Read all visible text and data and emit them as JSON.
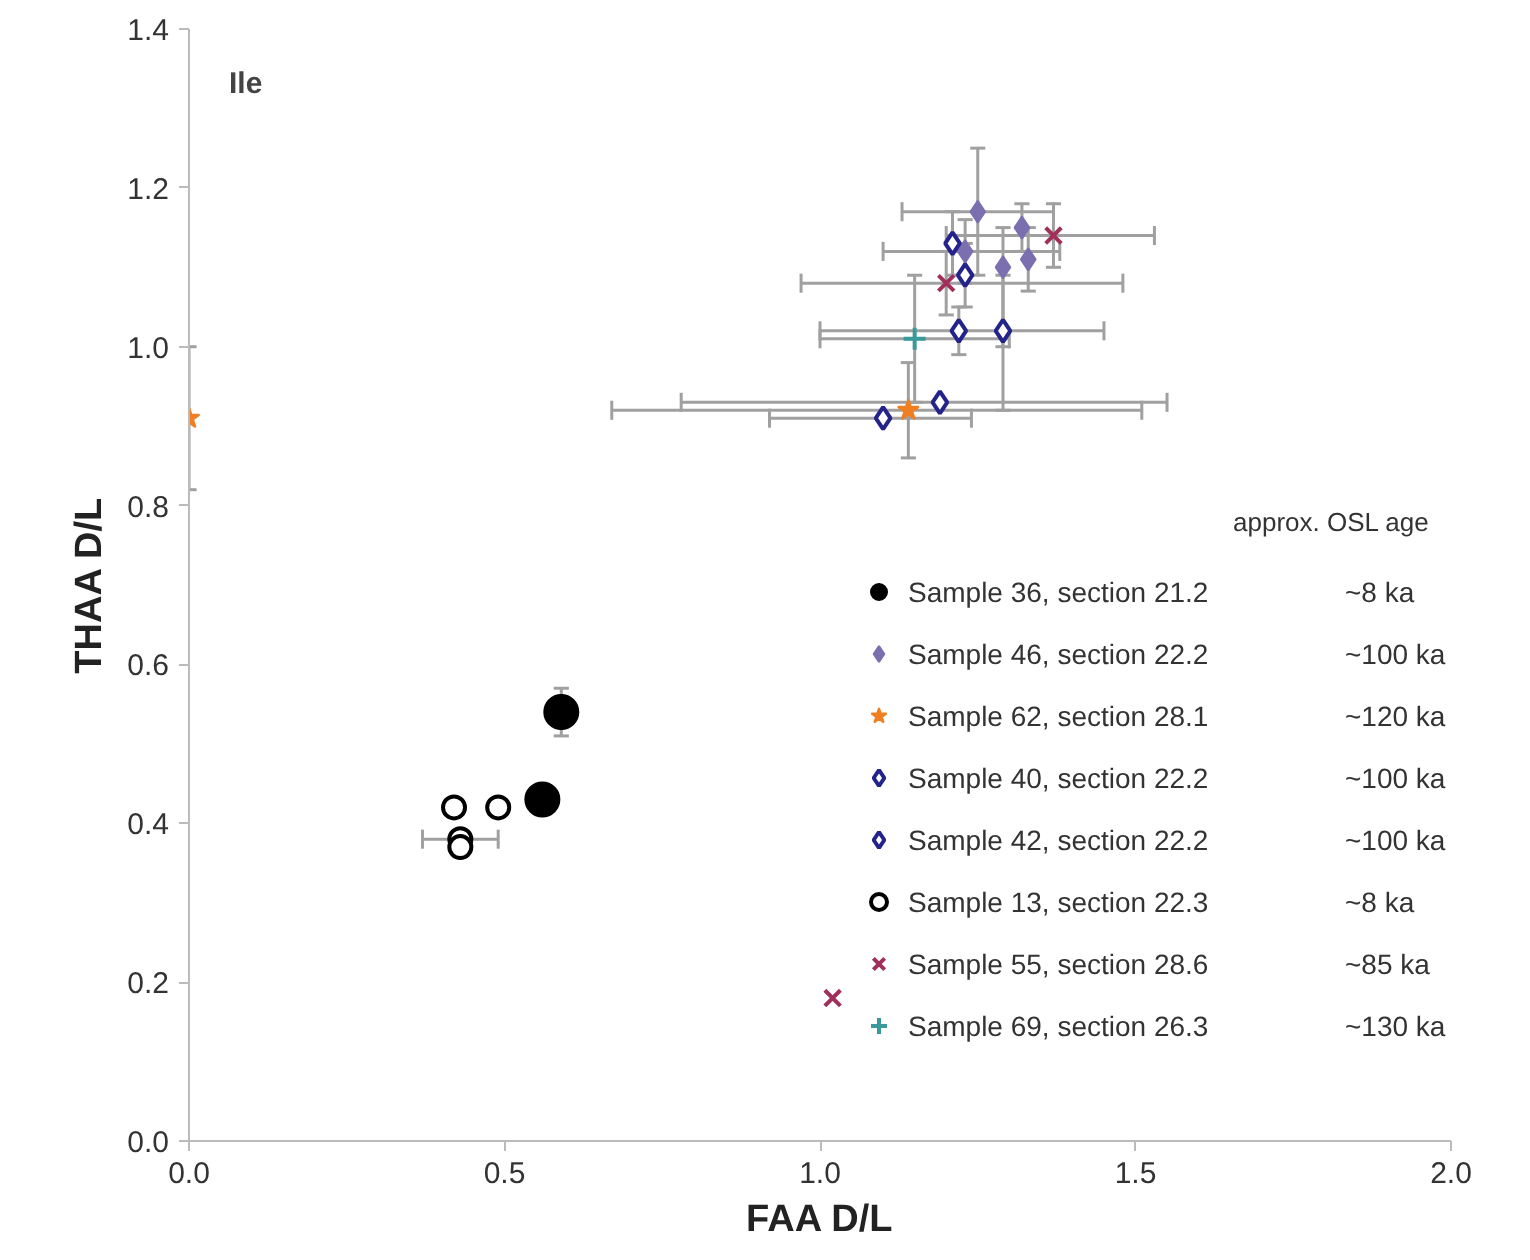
{
  "chart_data": {
    "type": "scatter",
    "title": "Ile",
    "xlabel": "FAA D/L",
    "ylabel": "THAA D/L",
    "xlim": [
      0,
      2.0
    ],
    "ylim": [
      0,
      1.4
    ],
    "xticks": [
      {
        "value": 0,
        "label": "0.0"
      },
      0.5,
      {
        "value": 1,
        "label": "1.0"
      },
      1.5,
      {
        "value": 2,
        "label": "2.0"
      }
    ],
    "yticks": [
      {
        "value": 0,
        "label": "0.0"
      },
      0.2,
      0.4,
      0.6,
      0.8,
      {
        "value": 1,
        "label": "1.0"
      },
      1.2,
      1.4
    ],
    "grid": false,
    "legend": "right",
    "legend_title": "approx. OSL age",
    "annotations": [
      "~8 ka",
      "~100 ka",
      "~120 ka",
      "~100 ka",
      "~100 ka",
      "~8 ka",
      "~85 ka",
      "~130 ka"
    ],
    "series": [
      {
        "name": "Sample 36, section 21.2",
        "color": "#000000",
        "marker": "circle",
        "x": [
          0.59,
          0.56
        ],
        "values": [
          0.54,
          0.43
        ],
        "errors": [
          0.03,
          null
        ]
      },
      {
        "name": "Sample 46, section 22.2",
        "color": "#7b6fb0",
        "marker": "diamond",
        "x": [
          1.25,
          1.32,
          1.23,
          1.29,
          1.33
        ],
        "values": [
          1.17,
          1.15,
          1.12,
          1.1,
          1.11
        ],
        "errors": [
          [
            1.09,
            1.25
          ],
          [
            1.12,
            1.18
          ],
          [
            1.08,
            1.16
          ],
          [
            1.0,
            1.15
          ],
          [
            1.07,
            1.15
          ]
        ],
        "xerrors": [
          [
            1.13,
            1.37
          ],
          null,
          [
            1.1,
            1.38
          ],
          null,
          null
        ]
      },
      {
        "name": "Sample 62, section 28.1",
        "color": "#f07f22",
        "marker": "star",
        "x": [
          0.0,
          1.14
        ],
        "values": [
          0.91,
          0.92
        ],
        "errors": [
          [
            0.82,
            1.0
          ],
          [
            0.86,
            0.98
          ]
        ],
        "xerrors": [
          null,
          [
            0.67,
            1.51
          ]
        ]
      },
      {
        "name": "Sample 40, section 22.2",
        "color": "#23238c",
        "marker": "diamond_open",
        "x": [
          1.21,
          1.23,
          1.22
        ],
        "values": [
          1.13,
          1.09,
          1.02
        ],
        "errors": [
          [
            1.09,
            1.17
          ],
          [
            1.05,
            1.13
          ],
          [
            0.99,
            1.05
          ]
        ],
        "xerrors": [
          null,
          null,
          [
            1.0,
            1.45
          ]
        ]
      },
      {
        "name": "Sample 42, section 22.2",
        "color": "#23238c",
        "marker": "diamond_open",
        "x": [
          1.29,
          1.19,
          1.1
        ],
        "values": [
          1.02,
          0.93,
          0.91
        ],
        "errors": [
          [
            0.92,
            1.09
          ],
          null,
          null
        ],
        "xerrors": [
          null,
          [
            0.78,
            1.55
          ],
          [
            0.92,
            1.24
          ]
        ]
      },
      {
        "name": "Sample 13, section 22.3",
        "color": "#000000",
        "marker": "circle_open",
        "x": [
          0.42,
          0.49,
          0.43,
          0.43
        ],
        "values": [
          0.42,
          0.42,
          0.38,
          0.37
        ],
        "errors": [
          null,
          null,
          null,
          null
        ],
        "xerrors": [
          null,
          null,
          [
            0.37,
            0.49
          ],
          null
        ]
      },
      {
        "name": "Sample 55, section 28.6",
        "color": "#a0305a",
        "marker": "x",
        "x": [
          1.37,
          1.2,
          1.02
        ],
        "values": [
          1.14,
          1.08,
          0.18
        ],
        "errors": [
          [
            1.1,
            1.18
          ],
          [
            1.04,
            1.12
          ],
          null
        ],
        "xerrors": [
          [
            1.2,
            1.53
          ],
          [
            0.97,
            1.48
          ],
          null
        ]
      },
      {
        "name": "Sample 69, section 26.3",
        "color": "#3a9a9a",
        "marker": "cross",
        "x": [
          1.15
        ],
        "values": [
          1.01
        ],
        "errors": [
          [
            0.93,
            1.09
          ]
        ],
        "xerrors": [
          [
            1.0,
            1.3
          ]
        ]
      }
    ]
  }
}
